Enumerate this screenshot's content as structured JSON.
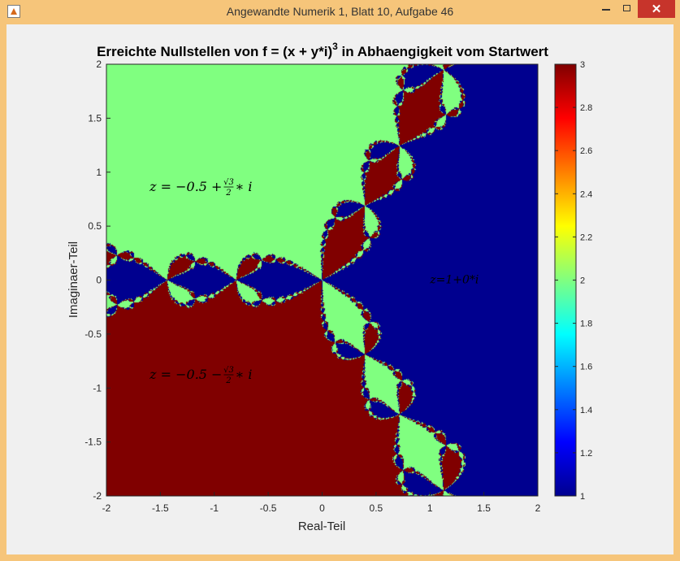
{
  "window": {
    "title": "Angewandte Numerik 1, Blatt 10, Aufgabe 46"
  },
  "chart_data": {
    "type": "heatmap",
    "title": "Erreichte Nullstellen von f = (x + y*i)",
    "title_superscript": "3",
    "title_suffix": " in Abhaengigkeit vom Startwert",
    "xlabel": "Real-Teil",
    "ylabel": "Imaginaer-Teil",
    "xlim": [
      -2,
      2
    ],
    "ylim": [
      -2,
      2
    ],
    "xticks": [
      "-2",
      "-1.5",
      "-1",
      "-0.5",
      "0",
      "0.5",
      "1",
      "1.5",
      "2"
    ],
    "yticks": [
      "2",
      "1.5",
      "1",
      "0.5",
      "0",
      "-0.5",
      "-1",
      "-1.5",
      "-2"
    ],
    "colorbar": {
      "range": [
        1,
        3
      ],
      "ticks": [
        "3",
        "2.8",
        "2.6",
        "2.4",
        "2.2",
        "2",
        "1.8",
        "1.6",
        "1.4",
        "1.2",
        "1"
      ],
      "colormap": "jet"
    },
    "regions": [
      {
        "value": 1,
        "color": "#00008f",
        "label": "z = 1 + 0*i"
      },
      {
        "value": 2,
        "color": "#80ff80",
        "label": "z = −0.5 + (√3/2) * i"
      },
      {
        "value": 3,
        "color": "#800000",
        "label": "z = −0.5 − (√3/2) * i"
      }
    ],
    "annotations": {
      "upper": {
        "prefix": "z = −0.5 + ",
        "num": "√3",
        "den": "2",
        "suffix": " ∗ i",
        "x": -1.6,
        "y": 0.87
      },
      "lower": {
        "prefix": "z = −0.5 − ",
        "num": "√3",
        "den": "2",
        "suffix": " ∗ i",
        "x": -1.6,
        "y": -0.87
      },
      "right": {
        "text": "z=1+0*i",
        "x": 1.0,
        "y": 0.0
      }
    }
  }
}
